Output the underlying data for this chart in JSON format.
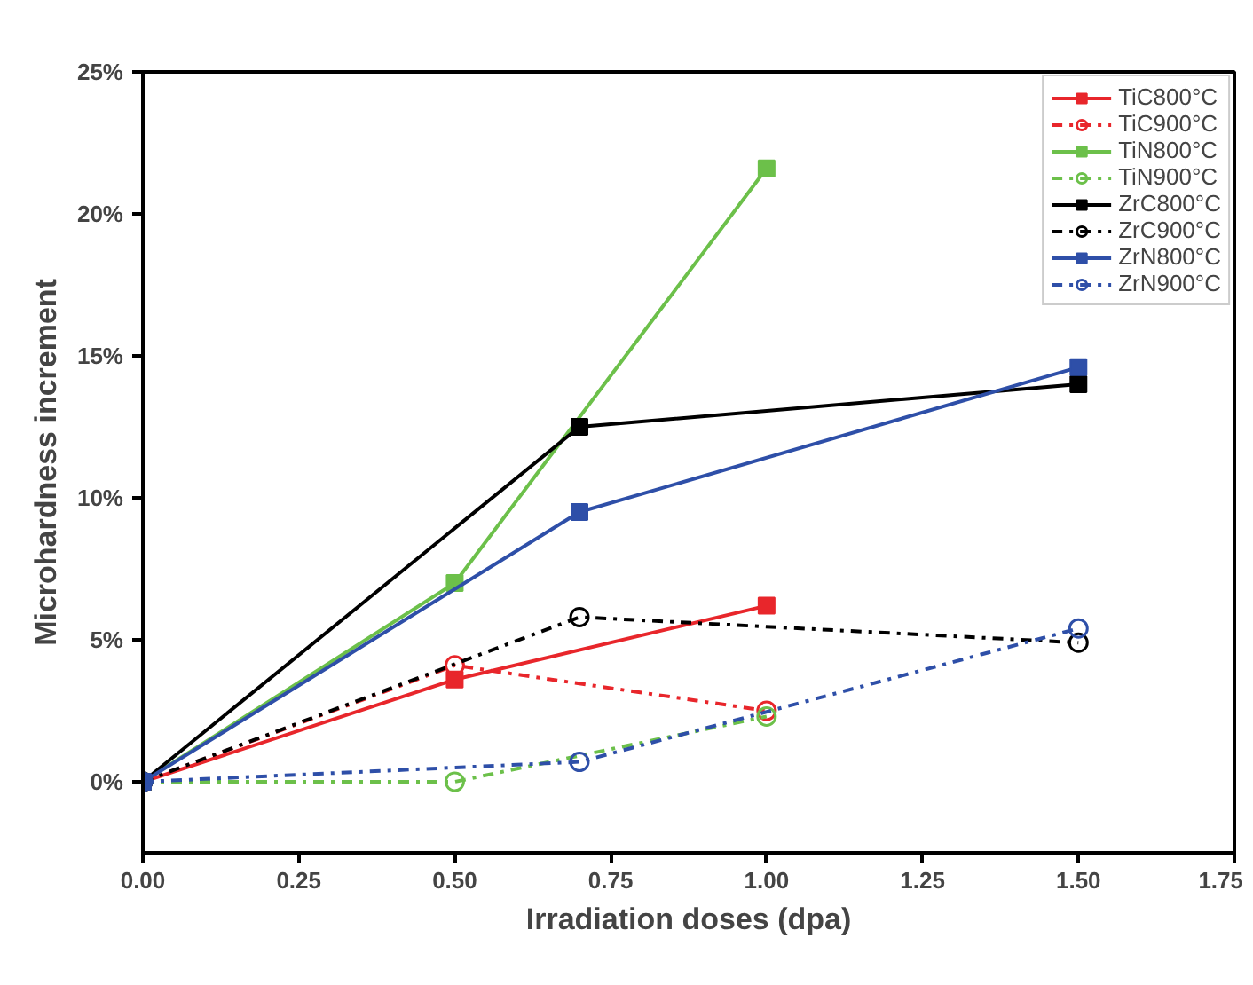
{
  "chart_data": {
    "type": "line",
    "xlabel": "Irradiation doses (dpa)",
    "ylabel": "Microhardness increment",
    "xlim": [
      0,
      1.75
    ],
    "xticks": [
      {
        "value": 0,
        "label": "0.00"
      },
      {
        "value": 0.25,
        "label": "0.25"
      },
      {
        "value": 0.5,
        "label": "0.50"
      },
      {
        "value": 0.75,
        "label": "0.75"
      },
      {
        "value": 1,
        "label": "1.00"
      },
      {
        "value": 1.25,
        "label": "1.25"
      },
      {
        "value": 1.5,
        "label": "1.50"
      },
      {
        "value": 1.75,
        "label": "1.75"
      }
    ],
    "ylim": [
      -2.5,
      25
    ],
    "yticks": [
      {
        "value": 0,
        "label": "0%"
      },
      {
        "value": 5,
        "label": "5%"
      },
      {
        "value": 10,
        "label": "10%"
      },
      {
        "value": 15,
        "label": "15%"
      },
      {
        "value": 20,
        "label": "20%"
      },
      {
        "value": 25,
        "label": "25%"
      }
    ],
    "grid": false,
    "legend": "top right",
    "series": [
      {
        "name": "TiC800°C",
        "color": "#e8262b",
        "marker": "square",
        "line_style": "solid",
        "x": [
          0,
          0.5,
          1.0
        ],
        "values": [
          0,
          3.6,
          6.2
        ]
      },
      {
        "name": "TiC900°C",
        "color": "#e8262b",
        "marker": "circle",
        "line_style": "dashdot",
        "x": [
          0,
          0.5,
          1.0
        ],
        "values": [
          0,
          4.1,
          2.5
        ]
      },
      {
        "name": "TiN800°C",
        "color": "#6cc04a",
        "marker": "square",
        "line_style": "solid",
        "x": [
          0,
          0.5,
          1.0
        ],
        "values": [
          0,
          7.0,
          21.6
        ]
      },
      {
        "name": "TiN900°C",
        "color": "#6cc04a",
        "marker": "circle",
        "line_style": "dashdot",
        "x": [
          0,
          0.5,
          1.0
        ],
        "values": [
          0,
          0,
          2.3
        ]
      },
      {
        "name": "ZrC800°C",
        "color": "#000000",
        "marker": "square",
        "line_style": "solid",
        "x": [
          0,
          0.7,
          1.5
        ],
        "values": [
          0,
          12.5,
          14.0
        ]
      },
      {
        "name": "ZrC900°C",
        "color": "#000000",
        "marker": "circle",
        "line_style": "dashdot",
        "x": [
          0,
          0.7,
          1.5
        ],
        "values": [
          0,
          5.8,
          4.9
        ]
      },
      {
        "name": "ZrN800°C",
        "color": "#2e4fa8",
        "marker": "square",
        "line_style": "solid",
        "x": [
          0,
          0.7,
          1.5
        ],
        "values": [
          0,
          9.5,
          14.6
        ]
      },
      {
        "name": "ZrN900°C",
        "color": "#2e4fa8",
        "marker": "circle",
        "line_style": "dashdot",
        "x": [
          0,
          0.7,
          1.5
        ],
        "values": [
          0,
          0.7,
          5.4
        ]
      }
    ]
  }
}
